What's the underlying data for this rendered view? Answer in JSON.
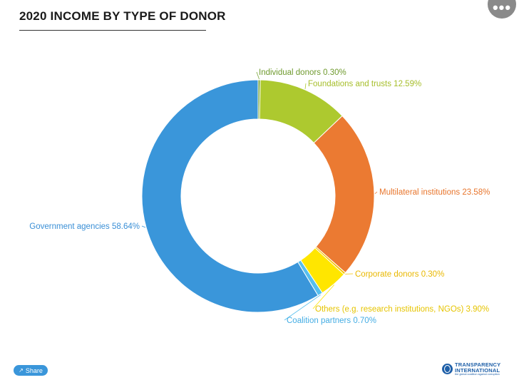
{
  "header": {
    "title": "2020 INCOME BY TYPE OF DONOR",
    "menu_icon": "more-dots-icon"
  },
  "footer": {
    "share_label": "Share",
    "share_icon": "share-icon",
    "logo_line1": "TRANSPARENCY",
    "logo_line2": "INTERNATIONAL",
    "logo_tagline": "the global coalition against corruption"
  },
  "chart_data": {
    "type": "pie",
    "donut": true,
    "title": "2020 INCOME BY TYPE OF DONOR",
    "slices": [
      {
        "label": "Individual donors",
        "value": 0.3,
        "display": "Individual donors 0.30%",
        "color": "#7aa638",
        "text_color": "#6f9a2e",
        "side": "right"
      },
      {
        "label": "Foundations and trusts",
        "value": 12.59,
        "display": "Foundations and trusts 12.59%",
        "color": "#adc92f",
        "text_color": "#a6be2a",
        "side": "right"
      },
      {
        "label": "Multilateral institutions",
        "value": 23.58,
        "display": "Multilateral institutions 23.58%",
        "color": "#eb7a32",
        "text_color": "#e8752c",
        "side": "right"
      },
      {
        "label": "Corporate donors",
        "value": 0.3,
        "display": "Corporate donors 0.30%",
        "color": "#f5c200",
        "text_color": "#e9b800",
        "side": "right"
      },
      {
        "label": "Others (e.g. research institutions, NGOs)",
        "value": 3.9,
        "display": "Others (e.g. research institutions, NGOs) 3.90%",
        "color": "#ffe600",
        "text_color": "#e6c400",
        "side": "right"
      },
      {
        "label": "Coalition partners",
        "value": 0.7,
        "display": "Coalition partners 0.70%",
        "color": "#56bfee",
        "text_color": "#44ade4",
        "side": "right"
      },
      {
        "label": "Government agencies",
        "value": 58.64,
        "display": "Government agencies 58.64%",
        "color": "#3a96da",
        "text_color": "#3a8fd6",
        "side": "left"
      }
    ]
  }
}
